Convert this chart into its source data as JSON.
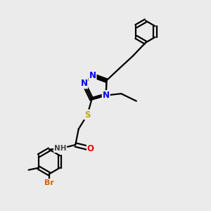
{
  "bg_color": "#ebebeb",
  "atom_colors": {
    "C": "#000000",
    "N": "#0000ee",
    "O": "#ee0000",
    "S": "#bbaa00",
    "Br": "#cc6600",
    "H": "#444444"
  },
  "bond_color": "#000000",
  "bond_width": 1.6,
  "fig_size": [
    3.0,
    3.0
  ],
  "dpi": 100
}
